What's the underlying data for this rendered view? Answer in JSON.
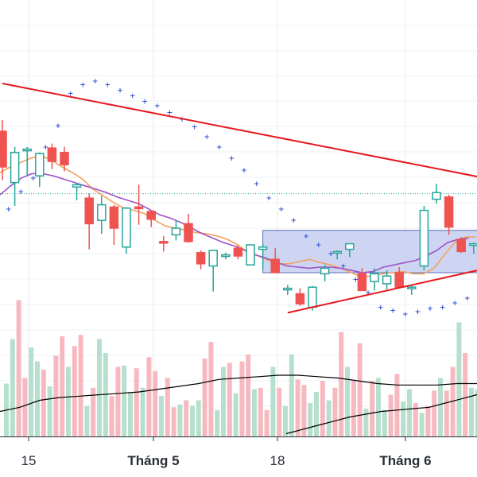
{
  "chart_data": {
    "type": "candlestick",
    "x_ticks": [
      "15",
      "Tháng 5",
      "18",
      "Tháng 6"
    ],
    "candles": [
      {
        "o": 182.0,
        "h": 192.0,
        "l": 138.0,
        "c": 150.0
      },
      {
        "o": 136.0,
        "h": 168.0,
        "l": 115.0,
        "c": 163.0
      },
      {
        "o": 166.0,
        "h": 168.0,
        "l": 142.0,
        "c": 166.0
      },
      {
        "o": 142.0,
        "h": 163.0,
        "l": 132.0,
        "c": 162.0
      },
      {
        "o": 167.0,
        "h": 171.0,
        "l": 148.0,
        "c": 155.0
      },
      {
        "o": 163.0,
        "h": 168.0,
        "l": 146.0,
        "c": 152.0
      },
      {
        "o": 132.0,
        "h": 136.0,
        "l": 120.0,
        "c": 134.0
      },
      {
        "o": 122.0,
        "h": 126.0,
        "l": 76.0,
        "c": 99.0
      },
      {
        "o": 102.0,
        "h": 124.0,
        "l": 90.0,
        "c": 116.0
      },
      {
        "o": 114.0,
        "h": 116.0,
        "l": 80.0,
        "c": 95.0
      },
      {
        "o": 78.0,
        "h": 114.0,
        "l": 72.0,
        "c": 113.0
      },
      {
        "o": 114.0,
        "h": 134.0,
        "l": 98.0,
        "c": 113.0
      },
      {
        "o": 110.0,
        "h": 111.0,
        "l": 96.0,
        "c": 103.0
      },
      {
        "o": 83.0,
        "h": 88.0,
        "l": 74.0,
        "c": 82.0
      },
      {
        "o": 89.0,
        "h": 102.0,
        "l": 84.0,
        "c": 95.0
      },
      {
        "o": 99.0,
        "h": 108.0,
        "l": 82.0,
        "c": 83.0
      },
      {
        "o": 73.0,
        "h": 75.0,
        "l": 58.0,
        "c": 63.0
      },
      {
        "o": 61.0,
        "h": 75.0,
        "l": 38.0,
        "c": 75.0
      },
      {
        "o": 70.0,
        "h": 73.0,
        "l": 67.0,
        "c": 71.0
      },
      {
        "o": 77.0,
        "h": 80.0,
        "l": 67.0,
        "c": 70.0
      },
      {
        "o": 62.0,
        "h": 80.0,
        "l": 62.0,
        "c": 80.0
      },
      {
        "o": 76.0,
        "h": 81.0,
        "l": 58.0,
        "c": 78.0
      },
      {
        "o": 67.0,
        "h": 77.0,
        "l": 55.0,
        "c": 55.0
      },
      {
        "o": 41.0,
        "h": 44.0,
        "l": 35.0,
        "c": 41.0
      },
      {
        "o": 36.0,
        "h": 41.0,
        "l": 25.0,
        "c": 27.0
      },
      {
        "o": 24.0,
        "h": 43.0,
        "l": 21.0,
        "c": 42.0
      },
      {
        "o": 54.0,
        "h": 62.0,
        "l": 47.0,
        "c": 59.0
      },
      {
        "o": 73.0,
        "h": 75.0,
        "l": 67.0,
        "c": 74.0
      },
      {
        "o": 76.0,
        "h": 81.0,
        "l": 69.0,
        "c": 81.0
      },
      {
        "o": 54.0,
        "h": 59.0,
        "l": 40.0,
        "c": 39.0
      },
      {
        "o": 47.0,
        "h": 59.0,
        "l": 39.0,
        "c": 54.0
      },
      {
        "o": 45.0,
        "h": 57.0,
        "l": 40.0,
        "c": 52.0
      },
      {
        "o": 55.0,
        "h": 60.0,
        "l": 41.0,
        "c": 42.0
      },
      {
        "o": 41.0,
        "h": 44.0,
        "l": 35.0,
        "c": 42.0
      },
      {
        "o": 61.0,
        "h": 115.0,
        "l": 57.0,
        "c": 111.0
      },
      {
        "o": 121.0,
        "h": 135.0,
        "l": 117.0,
        "c": 127.0
      },
      {
        "o": 123.0,
        "h": 125.0,
        "l": 89.0,
        "c": 96.0
      },
      {
        "o": 85.0,
        "h": 87.0,
        "l": 73.0,
        "c": 74.0
      },
      {
        "o": 80.0,
        "h": 82.0,
        "l": 72.0,
        "c": 81.0
      }
    ],
    "volume": [
      38.0,
      70.0,
      98.0,
      42.0,
      64.0,
      54.0,
      48.0,
      36.0,
      58.0,
      72.0,
      50.0,
      65.0,
      73.0,
      22.0,
      35.0,
      70.0,
      60.0,
      29.0,
      50.0,
      51.0,
      32.0,
      49.0,
      35.0,
      57.0,
      47.0,
      29.0,
      42.0,
      21.0,
      23.0,
      26.0,
      22.0,
      26.0,
      56.0,
      68.0,
      19.0,
      50.0,
      53.0,
      31.0,
      54.0,
      59.0,
      34.0,
      35.0,
      19.0,
      50.0,
      35.0,
      22.0,
      59.0,
      41.0,
      37.0,
      24.0,
      32.0,
      40.0,
      26.0,
      35.0,
      75.0,
      50.0,
      40.0,
      67.0,
      20.0,
      40.0,
      42.0,
      19.0,
      30.0,
      45.0,
      25.0,
      34.0,
      24.0,
      17.0,
      22.0,
      33.0,
      42.0,
      33.0,
      50.0,
      82.0,
      60.0,
      35.0,
      34.0,
      19.0,
      9.0,
      13.0
    ],
    "ma_fast": [
      145.0,
      150.0,
      154.0,
      158.0,
      160.0,
      156.0,
      150.0,
      145.0,
      139.0,
      130.0,
      124.0,
      118.0,
      113.0,
      111.0,
      108.0,
      102.0,
      97.0,
      95.0,
      93.0,
      91.0,
      90.0,
      88.0,
      85.0,
      80.0,
      73.0,
      70.0,
      66.0,
      63.0,
      63.0,
      65.0,
      67.0,
      64.0,
      62.0,
      59.0,
      55.0,
      51.0,
      52.0,
      54.0,
      55.0,
      56.0,
      54.0,
      54.0,
      59.0,
      71.0,
      82.0,
      87.0,
      87.0
    ],
    "ma_slow": [
      125.0,
      133.0,
      140.0,
      144.0,
      144.0,
      142.0,
      139.0,
      136.0,
      133.0,
      130.0,
      127.0,
      123.0,
      120.0,
      117.0,
      112.0,
      107.0,
      104.0,
      100.0,
      95.0,
      90.0,
      86.0,
      82.0,
      79.0,
      75.0,
      71.0,
      68.0,
      64.0,
      61.0,
      60.0,
      59.0,
      60.0,
      60.0,
      59.0,
      57.0,
      55.0,
      56.0,
      60.0,
      62.0,
      64.0,
      66.0,
      70.0,
      75.0,
      82.0,
      85.0,
      86.0
    ],
    "volume_ma": [
      18.0,
      21.0,
      26.0,
      28.0,
      29.0,
      30.0,
      31.0,
      32.0,
      34.0,
      36.0,
      38.0,
      41.0,
      42.0,
      43.0,
      44.0,
      44.0,
      43.0,
      42.0,
      40.0,
      38.0,
      37.0,
      37.0,
      37.0,
      38.0,
      38.0
    ],
    "volume_ma_long": [
      2.0,
      5.0,
      8.0,
      11.0,
      14.0,
      16.0,
      18.0,
      19.0,
      20.0,
      21.0,
      24.0,
      27.0,
      30.0
    ],
    "sar": [
      98.0,
      112.0,
      128.0,
      140.0,
      168.0,
      187.0,
      216.0,
      224.0,
      227.0,
      224.0,
      219.0,
      214.0,
      209.0,
      205.0,
      199.0,
      193.0,
      186.0,
      177.0,
      168.0,
      158.0,
      147.0,
      135.0,
      122.0,
      112.0,
      102.0,
      88.0,
      80.0,
      72.0,
      61.0,
      49.0,
      37.0,
      24.0,
      21.0,
      18.0,
      20.0,
      23.0,
      24.0,
      28.0,
      32.0,
      36.0,
      39.0,
      42.0,
      48.0,
      55.0
    ],
    "resistance_line": [
      {
        "x": 0.0,
        "y": 225.0
      },
      {
        "x": 39.0,
        "y": 137.0
      }
    ],
    "support_line": [
      {
        "x": 23.0,
        "y": 19.0
      },
      {
        "x": 39.0,
        "y": 62.0
      }
    ],
    "box_range": {
      "x_start": 21.0,
      "x_end": 39.0,
      "y_low": 55.0,
      "y_high": 93.0
    },
    "ref_level": 126.0,
    "colors": {
      "up": "#26a69a",
      "down": "#ef5350",
      "up_volume": "#b6e0cd",
      "down_volume": "#f7b9c0",
      "ma_fast": "#f5a05a",
      "ma_slow": "#a252c9",
      "trendline": "#e5191e",
      "sar": "#3a55d6",
      "box_fill": "#b8c3ec",
      "box_stroke": "#5b6fb8",
      "volume_ma": "#000000",
      "ref_level": "#26a69a"
    }
  }
}
